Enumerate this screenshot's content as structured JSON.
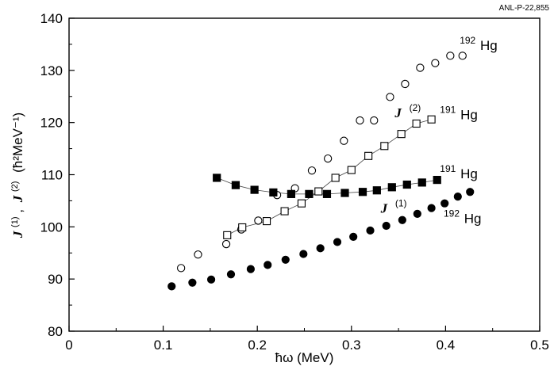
{
  "report_id": "ANL-P-22,855",
  "chart_data": {
    "type": "scatter",
    "title": "",
    "xlabel": "ħω (MeV)",
    "ylabel": {
      "j": "J",
      "sup1": "(1)",
      "comma": ",",
      "sup2": "(2)",
      "unit": "(ħ²MeV⁻¹)"
    },
    "xlim": [
      0,
      0.5
    ],
    "ylim": [
      80,
      140
    ],
    "xticks": [
      0,
      0.1,
      0.2,
      0.3,
      0.4,
      0.5
    ],
    "xtick_labels": [
      "0",
      "0.1",
      "0.2",
      "0.3",
      "0.4",
      "0.5"
    ],
    "yticks": [
      80,
      90,
      100,
      110,
      120,
      130,
      140
    ],
    "ytick_labels": [
      "80",
      "90",
      "100",
      "110",
      "120",
      "130",
      "140"
    ],
    "grid": false,
    "series": [
      {
        "name": "192Hg J(2)",
        "marker": "open-circle",
        "connected": false,
        "x": [
          0.119,
          0.137,
          0.167,
          0.183,
          0.201,
          0.221,
          0.24,
          0.258,
          0.275,
          0.292,
          0.309,
          0.324,
          0.341,
          0.357,
          0.373,
          0.389,
          0.405,
          0.418
        ],
        "y": [
          92.1,
          94.7,
          96.7,
          99.5,
          101.2,
          106.1,
          107.4,
          110.8,
          113.1,
          116.5,
          120.4,
          120.4,
          124.9,
          127.4,
          130.5,
          131.4,
          132.8,
          132.8
        ]
      },
      {
        "name": "191Hg J(2)",
        "marker": "open-square",
        "connected": true,
        "x": [
          0.168,
          0.184,
          0.21,
          0.229,
          0.247,
          0.265,
          0.283,
          0.3,
          0.318,
          0.335,
          0.353,
          0.369,
          0.385
        ],
        "y": [
          98.4,
          99.9,
          101.1,
          103.0,
          104.5,
          106.8,
          109.4,
          110.9,
          113.6,
          115.5,
          117.8,
          119.8,
          120.6
        ]
      },
      {
        "name": "191Hg J(1)",
        "marker": "filled-square",
        "connected": true,
        "x": [
          0.157,
          0.177,
          0.197,
          0.217,
          0.236,
          0.255,
          0.274,
          0.293,
          0.312,
          0.327,
          0.343,
          0.359,
          0.375,
          0.391
        ],
        "y": [
          109.4,
          108.0,
          107.1,
          106.6,
          106.3,
          106.3,
          106.3,
          106.5,
          106.7,
          107.0,
          107.6,
          108.1,
          108.5,
          109.0
        ]
      },
      {
        "name": "192Hg J(1)",
        "marker": "filled-circle",
        "connected": false,
        "x": [
          0.109,
          0.131,
          0.151,
          0.172,
          0.193,
          0.211,
          0.23,
          0.249,
          0.267,
          0.285,
          0.302,
          0.32,
          0.337,
          0.354,
          0.37,
          0.385,
          0.399,
          0.413,
          0.426
        ],
        "y": [
          88.6,
          89.3,
          89.9,
          90.9,
          91.9,
          92.7,
          93.7,
          94.8,
          95.9,
          97.1,
          98.1,
          99.3,
          100.2,
          101.3,
          102.5,
          103.6,
          104.5,
          105.8,
          106.7
        ]
      }
    ],
    "annotations": [
      {
        "name": "label-192hg-j2",
        "sup": "192",
        "text": "Hg",
        "x": 0.415,
        "y": 133.9
      },
      {
        "name": "label-j2",
        "main": "J",
        "sup": "(2)",
        "x": 0.346,
        "y": 121.0
      },
      {
        "name": "label-191hg-j2",
        "sup": "191",
        "text": "Hg",
        "x": 0.394,
        "y": 120.6
      },
      {
        "name": "label-191hg-j1",
        "sup": "191",
        "text": "Hg",
        "x": 0.394,
        "y": 109.3
      },
      {
        "name": "label-j1",
        "main": "J",
        "sup": "(1)",
        "x": 0.331,
        "y": 102.7
      },
      {
        "name": "label-192hg-j1",
        "sup": "192",
        "text": "Hg",
        "x": 0.398,
        "y": 100.7
      }
    ]
  }
}
